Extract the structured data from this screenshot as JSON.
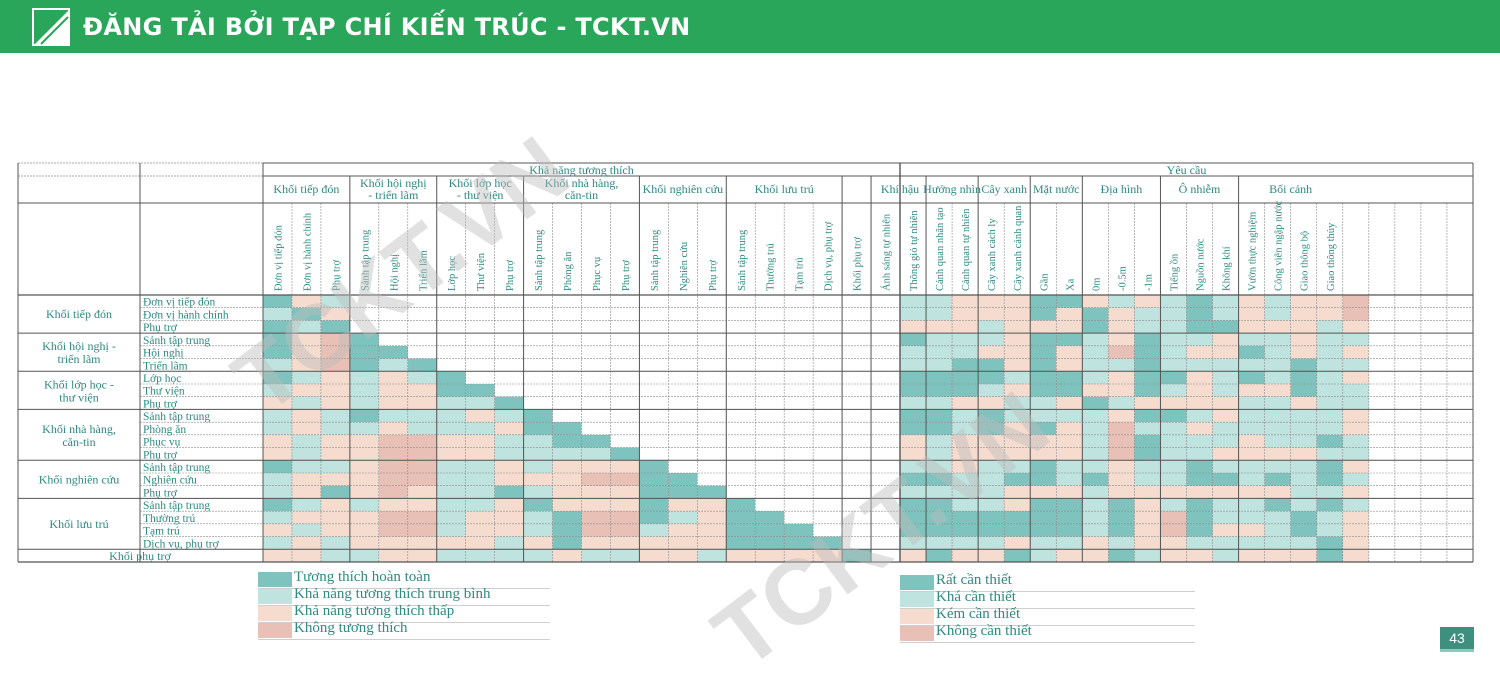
{
  "banner": {
    "text": "ĐĂNG TẢI BỞI TẠP CHÍ KIẾN TRÚC - TCKT.VN"
  },
  "watermark": {
    "text": "TCKT.VN"
  },
  "page_number": "43",
  "colors": {
    "c1": "#7fc3be",
    "c2": "#bfe3de",
    "c3": "#f6dccf",
    "c4": "#e9c0b5",
    "text": "#2e8a82",
    "banner": "#2aa65a",
    "grid": "#555555"
  },
  "legend_compat": [
    {
      "label": "Tương thích hoàn toàn",
      "color": "#7fc3be"
    },
    {
      "label": "Khả năng tương thích trung bình",
      "color": "#bfe3de"
    },
    {
      "label": "Khả năng tương thích thấp",
      "color": "#f6dccf"
    },
    {
      "label": "Không tương thích",
      "color": "#e9c0b5"
    }
  ],
  "legend_req": [
    {
      "label": "Rất cần thiết",
      "color": "#7fc3be"
    },
    {
      "label": "Khá cần thiết",
      "color": "#bfe3de"
    },
    {
      "label": "Kém cần thiết",
      "color": "#f6dccf"
    },
    {
      "label": "Không cần thiết",
      "color": "#e9c0b5"
    }
  ],
  "chart_data": {
    "type": "heatmap",
    "super_headers": [
      "Khả năng tương thích",
      "Yêu cầu"
    ],
    "column_groups": [
      {
        "label": "Khối tiếp đón",
        "columns": [
          "Đơn vị tiếp đón",
          "Đơn vị hành chính",
          "Phụ trợ"
        ]
      },
      {
        "label": "Khối hội nghị - triển lãm",
        "columns": [
          "Sảnh tập trung",
          "Hội nghị",
          "Triển lãm"
        ]
      },
      {
        "label": "Khối lớp học - thư viện",
        "columns": [
          "Lớp học",
          "Thư viện",
          "Phụ trợ"
        ]
      },
      {
        "label": "Khối nhà hàng, căn-tin",
        "columns": [
          "Sảnh tập trung",
          "Phòng ăn",
          "Phục vụ",
          "Phụ trợ"
        ]
      },
      {
        "label": "Khối nghiên cứu",
        "columns": [
          "Sảnh tập trung",
          "Nghiên cứu",
          "Phụ trợ"
        ]
      },
      {
        "label": "Khối lưu trú",
        "columns": [
          "Sảnh tập trung",
          "Thường trú",
          "Tạm trú",
          "Dịch vụ, phụ trợ"
        ]
      },
      {
        "label": "",
        "columns": [
          "Khối phụ trợ"
        ]
      },
      {
        "label": "Khí hậu",
        "columns": [
          "Ánh sáng tự nhiên",
          "Thông gió tự nhiên"
        ]
      },
      {
        "label": "Hướng nhìn",
        "columns": [
          "Cảnh quan nhân tạo",
          "Cảnh quan tự nhiên"
        ]
      },
      {
        "label": "Cây xanh",
        "columns": [
          "Cây xanh cách ly",
          "Cây xanh cảnh quan"
        ]
      },
      {
        "label": "Mặt nước",
        "columns": [
          "Gần",
          "Xa"
        ]
      },
      {
        "label": "Địa hình",
        "columns": [
          "0m",
          "-0.5m",
          "-1m"
        ]
      },
      {
        "label": "Ô nhiễm",
        "columns": [
          "Tiếng ồn",
          "Nguồn nước",
          "Không khí"
        ]
      },
      {
        "label": "Bối cảnh",
        "columns": [
          "Vườn thực nghiệm",
          "Công viên ngập nước",
          "Giao thông bộ",
          "Giao thông thủy"
        ]
      }
    ],
    "row_groups": [
      {
        "label": "Khối tiếp đón",
        "rows": [
          "Đơn vị tiếp đón",
          "Đơn vị hành chính",
          "Phụ trợ"
        ]
      },
      {
        "label": "Khối hội nghị - triển lãm",
        "rows": [
          "Sảnh tập trung",
          "Hội nghị",
          "Triển lãm"
        ]
      },
      {
        "label": "Khối lớp học - thư viện",
        "rows": [
          "Lớp học",
          "Thư viện",
          "Phụ trợ"
        ]
      },
      {
        "label": "Khối nhà hàng, căn-tin",
        "rows": [
          "Sảnh tập trung",
          "Phòng ăn",
          "Phục vụ",
          "Phụ trợ"
        ]
      },
      {
        "label": "Khối nghiên cứu",
        "rows": [
          "Sảnh tập trung",
          "Nghiên cứu",
          "Phụ trợ"
        ]
      },
      {
        "label": "Khối lưu trú",
        "rows": [
          "Sảnh tập trung",
          "Thường trú",
          "Tạm trú",
          "Dịch vụ, phụ trợ"
        ]
      },
      {
        "label": "Khối phụ trợ",
        "rows": [
          ""
        ]
      }
    ],
    "scale": [
      "1 = Tương thích hoàn toàn / Rất cần thiết",
      "2 = Khả năng tương thích trung bình / Khá cần thiết",
      "3 = Khả năng tương thích thấp / Kém cần thiết",
      "4 = Không tương thích / Không cần thiết"
    ],
    "values": [
      [
        1,
        3,
        2,
        0,
        0,
        0,
        0,
        0,
        0,
        0,
        0,
        0,
        0,
        0,
        0,
        0,
        0,
        0,
        0,
        0,
        0,
        0,
        2,
        2,
        3,
        3,
        3,
        1,
        1,
        3,
        2,
        3,
        2,
        1,
        2,
        3,
        2,
        3,
        3,
        4
      ],
      [
        2,
        1,
        3,
        0,
        0,
        0,
        0,
        0,
        0,
        0,
        0,
        0,
        0,
        0,
        0,
        0,
        0,
        0,
        0,
        0,
        0,
        0,
        2,
        2,
        3,
        3,
        3,
        1,
        3,
        1,
        3,
        2,
        2,
        1,
        2,
        3,
        2,
        3,
        3,
        4
      ],
      [
        1,
        2,
        1,
        0,
        0,
        0,
        0,
        0,
        0,
        0,
        0,
        0,
        0,
        0,
        0,
        0,
        0,
        0,
        0,
        0,
        0,
        0,
        3,
        3,
        3,
        2,
        3,
        3,
        3,
        1,
        3,
        2,
        2,
        1,
        1,
        3,
        3,
        3,
        2,
        3
      ],
      [
        1,
        3,
        4,
        1,
        0,
        0,
        0,
        0,
        0,
        0,
        0,
        0,
        0,
        0,
        0,
        0,
        0,
        0,
        0,
        0,
        0,
        0,
        1,
        2,
        2,
        2,
        3,
        1,
        1,
        2,
        3,
        1,
        2,
        2,
        3,
        2,
        2,
        3,
        2,
        2
      ],
      [
        1,
        3,
        4,
        1,
        1,
        0,
        0,
        0,
        0,
        0,
        0,
        0,
        0,
        0,
        0,
        0,
        0,
        0,
        0,
        0,
        0,
        0,
        2,
        2,
        2,
        3,
        3,
        1,
        3,
        2,
        4,
        1,
        2,
        3,
        3,
        1,
        2,
        3,
        2,
        3
      ],
      [
        2,
        3,
        4,
        1,
        2,
        1,
        0,
        0,
        0,
        0,
        0,
        0,
        0,
        0,
        0,
        0,
        0,
        0,
        0,
        0,
        0,
        0,
        2,
        2,
        1,
        1,
        3,
        1,
        3,
        2,
        2,
        1,
        2,
        2,
        2,
        2,
        2,
        1,
        2,
        2
      ],
      [
        1,
        2,
        3,
        2,
        3,
        2,
        1,
        0,
        0,
        0,
        0,
        0,
        0,
        0,
        0,
        0,
        0,
        0,
        0,
        0,
        0,
        0,
        1,
        1,
        1,
        1,
        2,
        1,
        1,
        2,
        3,
        1,
        1,
        3,
        2,
        1,
        2,
        1,
        2,
        3
      ],
      [
        2,
        3,
        3,
        2,
        3,
        3,
        1,
        1,
        0,
        0,
        0,
        0,
        0,
        0,
        0,
        0,
        0,
        0,
        0,
        0,
        0,
        0,
        1,
        1,
        1,
        2,
        3,
        1,
        1,
        3,
        3,
        1,
        2,
        3,
        2,
        3,
        3,
        1,
        2,
        2
      ],
      [
        3,
        2,
        3,
        2,
        3,
        3,
        2,
        2,
        1,
        0,
        0,
        0,
        0,
        0,
        0,
        0,
        0,
        0,
        0,
        0,
        0,
        0,
        2,
        2,
        3,
        3,
        2,
        2,
        3,
        1,
        2,
        3,
        3,
        3,
        3,
        2,
        2,
        3,
        2,
        2
      ],
      [
        2,
        3,
        2,
        1,
        2,
        2,
        2,
        3,
        2,
        1,
        0,
        0,
        0,
        0,
        0,
        0,
        0,
        0,
        0,
        0,
        0,
        0,
        1,
        1,
        2,
        1,
        2,
        2,
        2,
        2,
        3,
        1,
        1,
        2,
        3,
        2,
        2,
        2,
        2,
        3
      ],
      [
        2,
        3,
        2,
        2,
        3,
        2,
        2,
        2,
        3,
        1,
        1,
        0,
        0,
        0,
        0,
        0,
        0,
        0,
        0,
        0,
        0,
        0,
        1,
        1,
        2,
        1,
        3,
        1,
        3,
        2,
        4,
        2,
        2,
        3,
        2,
        2,
        2,
        2,
        2,
        3
      ],
      [
        3,
        2,
        3,
        3,
        4,
        4,
        3,
        3,
        2,
        2,
        1,
        1,
        0,
        0,
        0,
        0,
        0,
        0,
        0,
        0,
        0,
        0,
        3,
        2,
        3,
        3,
        3,
        3,
        3,
        2,
        4,
        1,
        2,
        2,
        2,
        3,
        2,
        2,
        1,
        2
      ],
      [
        3,
        2,
        3,
        3,
        4,
        4,
        3,
        3,
        2,
        2,
        2,
        2,
        1,
        0,
        0,
        0,
        0,
        0,
        0,
        0,
        0,
        0,
        3,
        2,
        3,
        3,
        3,
        3,
        3,
        2,
        4,
        1,
        2,
        2,
        3,
        3,
        3,
        3,
        2,
        2
      ],
      [
        1,
        2,
        2,
        3,
        4,
        4,
        2,
        2,
        3,
        2,
        3,
        3,
        3,
        1,
        0,
        0,
        0,
        0,
        0,
        0,
        0,
        0,
        2,
        2,
        3,
        2,
        2,
        1,
        2,
        2,
        3,
        2,
        2,
        1,
        2,
        2,
        2,
        2,
        1,
        3
      ],
      [
        2,
        3,
        3,
        3,
        4,
        4,
        2,
        2,
        3,
        3,
        3,
        4,
        4,
        1,
        1,
        0,
        0,
        0,
        0,
        0,
        0,
        0,
        1,
        1,
        2,
        2,
        1,
        1,
        2,
        1,
        3,
        2,
        2,
        1,
        1,
        2,
        1,
        2,
        1,
        2
      ],
      [
        2,
        3,
        1,
        3,
        4,
        3,
        2,
        2,
        1,
        2,
        3,
        3,
        3,
        1,
        1,
        1,
        0,
        0,
        0,
        0,
        0,
        0,
        2,
        2,
        2,
        2,
        3,
        3,
        3,
        2,
        3,
        3,
        3,
        3,
        3,
        3,
        3,
        2,
        2,
        3
      ],
      [
        1,
        2,
        3,
        2,
        3,
        3,
        2,
        2,
        3,
        1,
        3,
        3,
        3,
        1,
        3,
        3,
        1,
        0,
        0,
        0,
        0,
        0,
        1,
        1,
        2,
        2,
        3,
        1,
        1,
        2,
        1,
        3,
        2,
        1,
        2,
        2,
        1,
        2,
        1,
        2
      ],
      [
        2,
        3,
        3,
        3,
        4,
        4,
        2,
        3,
        3,
        2,
        1,
        4,
        4,
        1,
        2,
        3,
        1,
        1,
        0,
        0,
        0,
        0,
        1,
        1,
        1,
        1,
        1,
        1,
        1,
        2,
        1,
        3,
        4,
        1,
        2,
        2,
        2,
        1,
        2,
        3
      ],
      [
        3,
        2,
        3,
        3,
        4,
        4,
        2,
        3,
        3,
        2,
        1,
        4,
        4,
        2,
        3,
        3,
        1,
        1,
        1,
        0,
        0,
        0,
        1,
        1,
        1,
        1,
        1,
        1,
        1,
        2,
        1,
        3,
        4,
        1,
        3,
        3,
        2,
        1,
        2,
        3
      ],
      [
        2,
        3,
        2,
        3,
        3,
        3,
        3,
        3,
        2,
        3,
        1,
        3,
        3,
        3,
        3,
        3,
        1,
        1,
        1,
        1,
        0,
        0,
        2,
        2,
        2,
        2,
        3,
        2,
        2,
        3,
        2,
        3,
        3,
        2,
        2,
        2,
        2,
        2,
        1,
        3
      ],
      [
        3,
        3,
        2,
        2,
        3,
        3,
        2,
        2,
        2,
        2,
        3,
        2,
        2,
        3,
        3,
        2,
        3,
        3,
        3,
        3,
        1,
        0,
        3,
        1,
        3,
        3,
        1,
        2,
        3,
        3,
        1,
        2,
        3,
        3,
        2,
        3,
        3,
        3,
        1,
        3
      ]
    ]
  }
}
